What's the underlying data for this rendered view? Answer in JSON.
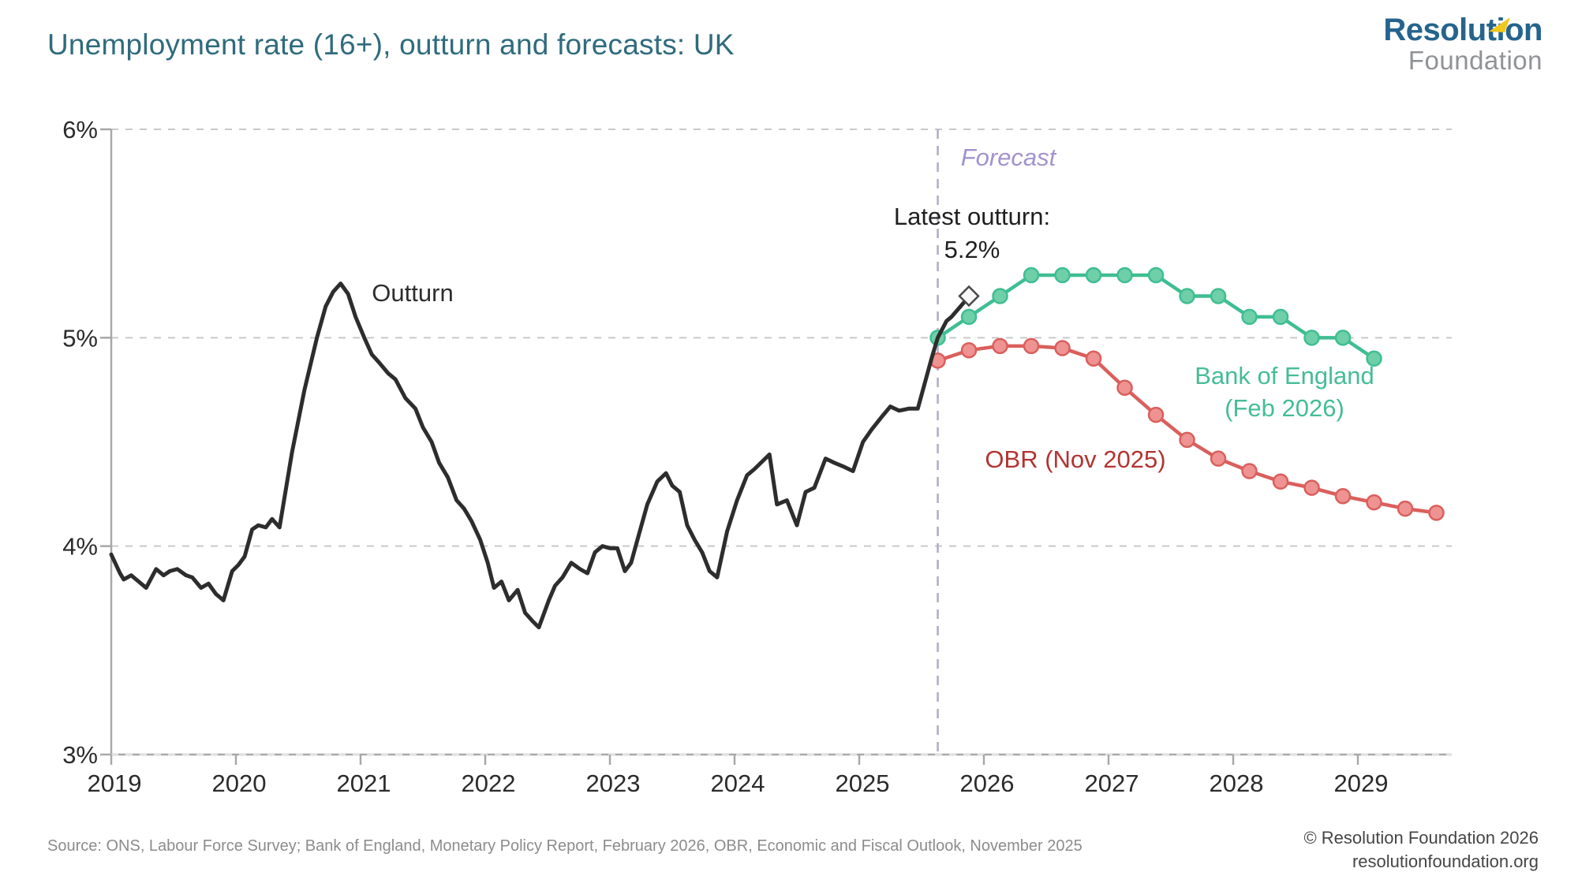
{
  "header": {
    "title": "Unemployment rate (16+), outturn and forecasts: UK",
    "logo_line1": "Resolution",
    "logo_line2": "Foundation",
    "logo_accent_color": "#f2c71c"
  },
  "annotations": {
    "outturn_label": "Outturn",
    "forecast_label": "Forecast",
    "latest_outturn_line1": "Latest outturn:",
    "latest_outturn_line2": "5.2%",
    "boe_label_line1": "Bank of England",
    "boe_label_line2": "(Feb 2026)",
    "obr_label": "OBR (Nov 2025)"
  },
  "footer": {
    "source": "Source: ONS, Labour Force Survey; Bank of England, Monetary Policy Report, February 2026, OBR, Economic and Fiscal Outlook, November 2025",
    "copyright": "© Resolution Foundation 2026",
    "website": "resolutionfoundation.org"
  },
  "chart_data": {
    "type": "line",
    "title": "Unemployment rate (16+), outturn and forecasts: UK",
    "ylabel": "Unemployment rate",
    "unit": "%",
    "ylim": [
      3,
      6
    ],
    "xlim": [
      2019,
      2029.75
    ],
    "grid": "dashed horizontal at 3,4,5,6",
    "legend_position": "inline annotations",
    "y_axis": {
      "ticks": [
        3,
        4,
        5,
        6
      ],
      "tick_labels": [
        "3%",
        "4%",
        "5%",
        "6%"
      ]
    },
    "x_axis": {
      "ticks": [
        2019,
        2020,
        2021,
        2022,
        2023,
        2024,
        2025,
        2026,
        2027,
        2028,
        2029
      ],
      "tick_labels": [
        "2019",
        "2020",
        "2021",
        "2022",
        "2023",
        "2024",
        "2025",
        "2026",
        "2027",
        "2028",
        "2029"
      ]
    },
    "forecast_divider_x": 2025.63,
    "latest_outturn_marker": {
      "x": 2025.88,
      "value": 5.2,
      "shape": "open-diamond"
    },
    "colors": {
      "outturn": "#2d2d2d",
      "boe_line": "#3fbe92",
      "boe_dot_fill": "#6ecfa8",
      "boe_label": "#45bd95",
      "obr_line": "#da5f5c",
      "obr_dot_fill": "#ee9391",
      "obr_label": "#b23431",
      "forecast_text": "#a293cf",
      "forecast_divider": "#b2aac5",
      "grid": "#c9c9c9",
      "axis": "#a8a8a8",
      "tick_text": "#2b2b2b"
    },
    "series": [
      {
        "name": "Outturn",
        "style": "solid",
        "markers": false,
        "points": [
          [
            2019.0,
            3.96
          ],
          [
            2019.07,
            3.87
          ],
          [
            2019.1,
            3.84
          ],
          [
            2019.16,
            3.86
          ],
          [
            2019.22,
            3.83
          ],
          [
            2019.28,
            3.8
          ],
          [
            2019.36,
            3.89
          ],
          [
            2019.42,
            3.86
          ],
          [
            2019.47,
            3.88
          ],
          [
            2019.53,
            3.89
          ],
          [
            2019.6,
            3.86
          ],
          [
            2019.65,
            3.85
          ],
          [
            2019.72,
            3.8
          ],
          [
            2019.78,
            3.82
          ],
          [
            2019.84,
            3.77
          ],
          [
            2019.9,
            3.74
          ],
          [
            2019.97,
            3.88
          ],
          [
            2020.02,
            3.91
          ],
          [
            2020.07,
            3.95
          ],
          [
            2020.13,
            4.08
          ],
          [
            2020.18,
            4.1
          ],
          [
            2020.24,
            4.09
          ],
          [
            2020.29,
            4.13
          ],
          [
            2020.35,
            4.09
          ],
          [
            2020.45,
            4.45
          ],
          [
            2020.55,
            4.75
          ],
          [
            2020.65,
            5.0
          ],
          [
            2020.72,
            5.15
          ],
          [
            2020.78,
            5.22
          ],
          [
            2020.84,
            5.26
          ],
          [
            2020.9,
            5.21
          ],
          [
            2020.96,
            5.1
          ],
          [
            2021.03,
            5.0
          ],
          [
            2021.09,
            4.92
          ],
          [
            2021.15,
            4.88
          ],
          [
            2021.22,
            4.83
          ],
          [
            2021.28,
            4.8
          ],
          [
            2021.36,
            4.71
          ],
          [
            2021.44,
            4.66
          ],
          [
            2021.5,
            4.57
          ],
          [
            2021.57,
            4.5
          ],
          [
            2021.63,
            4.4
          ],
          [
            2021.7,
            4.33
          ],
          [
            2021.77,
            4.22
          ],
          [
            2021.83,
            4.18
          ],
          [
            2021.89,
            4.12
          ],
          [
            2021.96,
            4.03
          ],
          [
            2022.02,
            3.92
          ],
          [
            2022.07,
            3.8
          ],
          [
            2022.13,
            3.83
          ],
          [
            2022.19,
            3.74
          ],
          [
            2022.26,
            3.79
          ],
          [
            2022.32,
            3.68
          ],
          [
            2022.38,
            3.64
          ],
          [
            2022.43,
            3.61
          ],
          [
            2022.51,
            3.74
          ],
          [
            2022.56,
            3.81
          ],
          [
            2022.62,
            3.85
          ],
          [
            2022.69,
            3.92
          ],
          [
            2022.76,
            3.89
          ],
          [
            2022.82,
            3.87
          ],
          [
            2022.88,
            3.97
          ],
          [
            2022.94,
            4.0
          ],
          [
            2023.0,
            3.99
          ],
          [
            2023.06,
            3.99
          ],
          [
            2023.12,
            3.88
          ],
          [
            2023.17,
            3.92
          ],
          [
            2023.23,
            4.05
          ],
          [
            2023.3,
            4.2
          ],
          [
            2023.38,
            4.31
          ],
          [
            2023.45,
            4.35
          ],
          [
            2023.5,
            4.29
          ],
          [
            2023.56,
            4.26
          ],
          [
            2023.62,
            4.1
          ],
          [
            2023.68,
            4.03
          ],
          [
            2023.74,
            3.97
          ],
          [
            2023.8,
            3.88
          ],
          [
            2023.86,
            3.85
          ],
          [
            2023.94,
            4.07
          ],
          [
            2024.02,
            4.22
          ],
          [
            2024.1,
            4.34
          ],
          [
            2024.16,
            4.37
          ],
          [
            2024.28,
            4.44
          ],
          [
            2024.34,
            4.2
          ],
          [
            2024.42,
            4.22
          ],
          [
            2024.5,
            4.1
          ],
          [
            2024.57,
            4.26
          ],
          [
            2024.64,
            4.28
          ],
          [
            2024.73,
            4.42
          ],
          [
            2024.8,
            4.4
          ],
          [
            2024.88,
            4.38
          ],
          [
            2024.95,
            4.36
          ],
          [
            2025.03,
            4.5
          ],
          [
            2025.1,
            4.56
          ],
          [
            2025.18,
            4.62
          ],
          [
            2025.25,
            4.67
          ],
          [
            2025.32,
            4.65
          ],
          [
            2025.4,
            4.66
          ],
          [
            2025.47,
            4.66
          ],
          [
            2025.58,
            4.9
          ],
          [
            2025.63,
            5.0
          ],
          [
            2025.7,
            5.08
          ],
          [
            2025.74,
            5.1
          ],
          [
            2025.87,
            5.19
          ]
        ]
      },
      {
        "name": "Bank of England (Feb 2026)",
        "style": "solid",
        "markers": true,
        "x_start": 2025.63,
        "x_step": 0.25,
        "values": [
          5.0,
          5.1,
          5.2,
          5.3,
          5.3,
          5.3,
          5.3,
          5.3,
          5.2,
          5.2,
          5.1,
          5.1,
          5.0,
          5.0,
          4.9
        ]
      },
      {
        "name": "OBR (Nov 2025)",
        "style": "solid",
        "markers": true,
        "x_start": 2025.63,
        "x_step": 0.25,
        "values": [
          4.89,
          4.94,
          4.96,
          4.96,
          4.95,
          4.9,
          4.76,
          4.63,
          4.51,
          4.42,
          4.36,
          4.31,
          4.28,
          4.24,
          4.21,
          4.18,
          4.16
        ]
      }
    ]
  }
}
